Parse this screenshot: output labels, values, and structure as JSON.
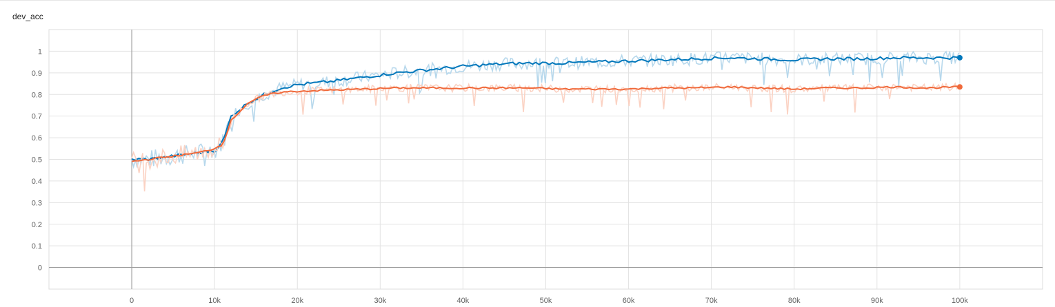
{
  "chart_data": {
    "type": "line",
    "title": "dev_acc",
    "xlabel": "",
    "ylabel": "",
    "xlim": [
      -10000,
      110000
    ],
    "ylim": [
      -0.1,
      1.1
    ],
    "grid": true,
    "legend": "none",
    "x_ticks": [
      0,
      10000,
      20000,
      30000,
      40000,
      50000,
      60000,
      70000,
      80000,
      90000,
      100000
    ],
    "x_tick_labels": [
      "0",
      "10k",
      "20k",
      "30k",
      "40k",
      "50k",
      "60k",
      "70k",
      "80k",
      "90k",
      "100k"
    ],
    "y_ticks": [
      0,
      0.1,
      0.2,
      0.3,
      0.4,
      0.5,
      0.6,
      0.7,
      0.8,
      0.9,
      1
    ],
    "y_tick_labels": [
      "0",
      "0.1",
      "0.2",
      "0.3",
      "0.4",
      "0.5",
      "0.6",
      "0.7",
      "0.8",
      "0.9",
      "1"
    ],
    "series": [
      {
        "color": "#0077bb",
        "raw_color": "#b7d8ec",
        "x": [
          0,
          2000,
          4000,
          6000,
          8000,
          10000,
          11000,
          12000,
          14000,
          16000,
          18000,
          20000,
          24000,
          28000,
          32000,
          36000,
          40000,
          44000,
          48000,
          52000,
          56000,
          60000,
          64000,
          68000,
          72000,
          76000,
          80000,
          84000,
          88000,
          92000,
          96000,
          100000
        ],
        "y": [
          0.5,
          0.5,
          0.51,
          0.52,
          0.53,
          0.54,
          0.58,
          0.7,
          0.76,
          0.8,
          0.83,
          0.845,
          0.86,
          0.88,
          0.9,
          0.915,
          0.93,
          0.94,
          0.945,
          0.945,
          0.95,
          0.955,
          0.96,
          0.965,
          0.97,
          0.965,
          0.96,
          0.965,
          0.965,
          0.97,
          0.97,
          0.97
        ]
      },
      {
        "color": "#f0693a",
        "raw_color": "#fbd2c3",
        "x": [
          0,
          2000,
          4000,
          6000,
          8000,
          10000,
          11000,
          12000,
          14000,
          16000,
          18000,
          20000,
          24000,
          28000,
          32000,
          36000,
          40000,
          44000,
          48000,
          52000,
          56000,
          60000,
          64000,
          68000,
          72000,
          76000,
          80000,
          84000,
          88000,
          92000,
          96000,
          100000
        ],
        "y": [
          0.49,
          0.5,
          0.51,
          0.52,
          0.53,
          0.55,
          0.57,
          0.68,
          0.76,
          0.795,
          0.81,
          0.815,
          0.82,
          0.825,
          0.83,
          0.83,
          0.83,
          0.83,
          0.83,
          0.825,
          0.825,
          0.825,
          0.83,
          0.83,
          0.835,
          0.83,
          0.825,
          0.83,
          0.83,
          0.835,
          0.83,
          0.835
        ]
      }
    ]
  }
}
